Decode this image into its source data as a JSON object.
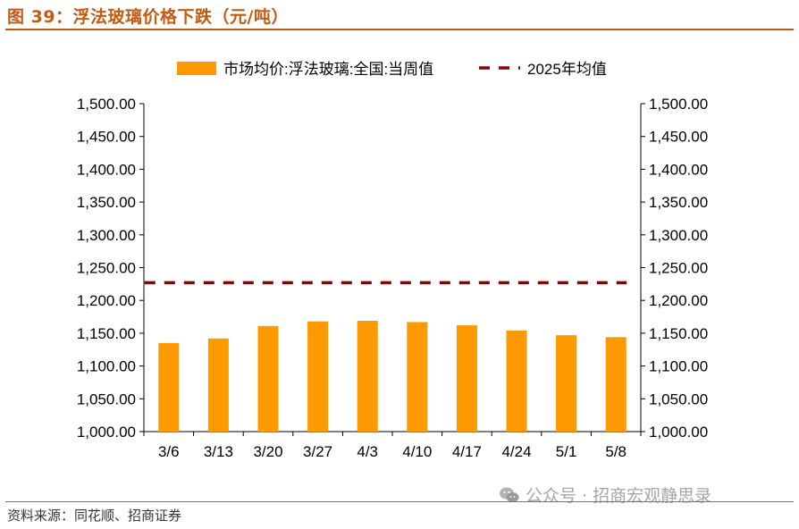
{
  "figure": {
    "title": "图 39：浮法玻璃价格下跌（元/吨）",
    "source": "资料来源：同花顺、招商证券",
    "watermark": "公众号 · 招商宏观静思录",
    "watermark_icon": "wechat-icon"
  },
  "colors": {
    "accent": "#c55a11",
    "bar": "#ff9900",
    "avg_line": "#8b0000",
    "axis": "#000000",
    "watermark": "#a6a6a6"
  },
  "chart_data": {
    "type": "bar",
    "title": "",
    "xlabel": "",
    "ylabel": "",
    "categories": [
      "3/6",
      "3/13",
      "3/20",
      "3/27",
      "4/3",
      "4/10",
      "4/17",
      "4/24",
      "5/1",
      "5/8"
    ],
    "series": [
      {
        "name": "市场均价:浮法玻璃:全国:当周值",
        "type": "bar",
        "color": "#ff9900",
        "values": [
          1135,
          1142,
          1161,
          1168,
          1169,
          1167,
          1162,
          1154,
          1147,
          1144
        ]
      },
      {
        "name": "2025年均值",
        "type": "line",
        "style": "dashed",
        "color": "#8b0000",
        "values": [
          1227,
          1227,
          1227,
          1227,
          1227,
          1227,
          1227,
          1227,
          1227,
          1227
        ]
      }
    ],
    "ylim": [
      1000,
      1500
    ],
    "yticks": [
      "1,000.00",
      "1,050.00",
      "1,100.00",
      "1,150.00",
      "1,200.00",
      "1,250.00",
      "1,300.00",
      "1,350.00",
      "1,400.00",
      "1,450.00",
      "1,500.00"
    ],
    "y_right_ticks": [
      "1,000.00",
      "1,050.00",
      "1,100.00",
      "1,150.00",
      "1,200.00",
      "1,250.00",
      "1,300.00",
      "1,350.00",
      "1,400.00",
      "1,450.00",
      "1,500.00"
    ],
    "grid": false,
    "legend": "top-center"
  }
}
